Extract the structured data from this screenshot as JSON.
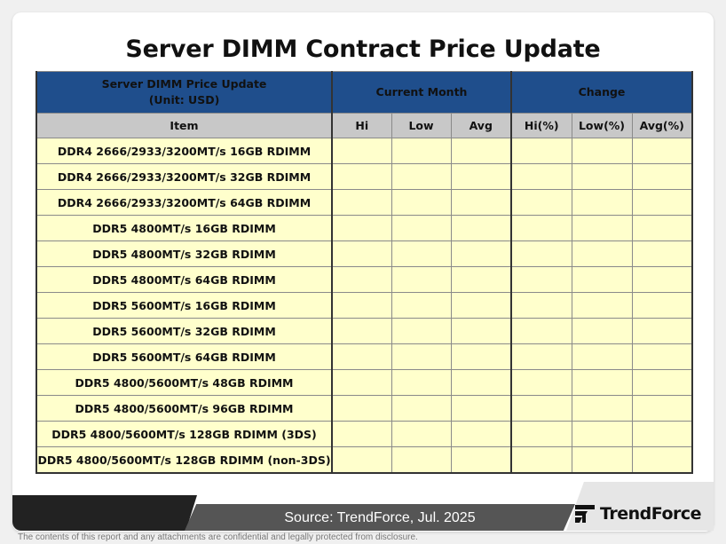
{
  "title": "Server DIMM Contract Price Update",
  "watermark": "TrendForce",
  "table": {
    "header_left": [
      "Server DIMM Price Update",
      "(Unit: USD)"
    ],
    "group_current": "Current Month",
    "group_change": "Change",
    "columns": {
      "item": "Item",
      "hi": "Hi",
      "low": "Low",
      "avg": "Avg",
      "hi_pct": "Hi(%)",
      "low_pct": "Low(%)",
      "avg_pct": "Avg(%)"
    },
    "rows": [
      {
        "item": "DDR4 2666/2933/3200MT/s 16GB RDIMM",
        "hi": "",
        "low": "",
        "avg": "",
        "hi_pct": "",
        "low_pct": "",
        "avg_pct": ""
      },
      {
        "item": "DDR4 2666/2933/3200MT/s 32GB RDIMM",
        "hi": "",
        "low": "",
        "avg": "",
        "hi_pct": "",
        "low_pct": "",
        "avg_pct": ""
      },
      {
        "item": "DDR4 2666/2933/3200MT/s 64GB RDIMM",
        "hi": "",
        "low": "",
        "avg": "",
        "hi_pct": "",
        "low_pct": "",
        "avg_pct": ""
      },
      {
        "item": "DDR5 4800MT/s 16GB RDIMM",
        "hi": "",
        "low": "",
        "avg": "",
        "hi_pct": "",
        "low_pct": "",
        "avg_pct": ""
      },
      {
        "item": "DDR5 4800MT/s 32GB RDIMM",
        "hi": "",
        "low": "",
        "avg": "",
        "hi_pct": "",
        "low_pct": "",
        "avg_pct": ""
      },
      {
        "item": "DDR5 4800MT/s 64GB RDIMM",
        "hi": "",
        "low": "",
        "avg": "",
        "hi_pct": "",
        "low_pct": "",
        "avg_pct": ""
      },
      {
        "item": "DDR5 5600MT/s 16GB RDIMM",
        "hi": "",
        "low": "",
        "avg": "",
        "hi_pct": "",
        "low_pct": "",
        "avg_pct": ""
      },
      {
        "item": "DDR5 5600MT/s 32GB RDIMM",
        "hi": "",
        "low": "",
        "avg": "",
        "hi_pct": "",
        "low_pct": "",
        "avg_pct": ""
      },
      {
        "item": "DDR5 5600MT/s 64GB RDIMM",
        "hi": "",
        "low": "",
        "avg": "",
        "hi_pct": "",
        "low_pct": "",
        "avg_pct": ""
      },
      {
        "item": "DDR5 4800/5600MT/s 48GB RDIMM",
        "hi": "",
        "low": "",
        "avg": "",
        "hi_pct": "",
        "low_pct": "",
        "avg_pct": ""
      },
      {
        "item": "DDR5 4800/5600MT/s 96GB RDIMM",
        "hi": "",
        "low": "",
        "avg": "",
        "hi_pct": "",
        "low_pct": "",
        "avg_pct": ""
      },
      {
        "item": "DDR5 4800/5600MT/s 128GB RDIMM (3DS)",
        "hi": "",
        "low": "",
        "avg": "",
        "hi_pct": "",
        "low_pct": "",
        "avg_pct": ""
      },
      {
        "item": "DDR5 4800/5600MT/s 128GB RDIMM (non-3DS)",
        "hi": "",
        "low": "",
        "avg": "",
        "hi_pct": "",
        "low_pct": "",
        "avg_pct": ""
      }
    ]
  },
  "footer": {
    "source": "Source: TrendForce, Jul. 2025",
    "logo_text": "TrendForce",
    "disclaimer": "The contents of this report and any attachments are confidential and legally protected from disclosure."
  },
  "colors": {
    "header_blue": "#1f4e8c",
    "header_gray": "#c8c8c8",
    "cell_yellow": "#ffffcc"
  }
}
